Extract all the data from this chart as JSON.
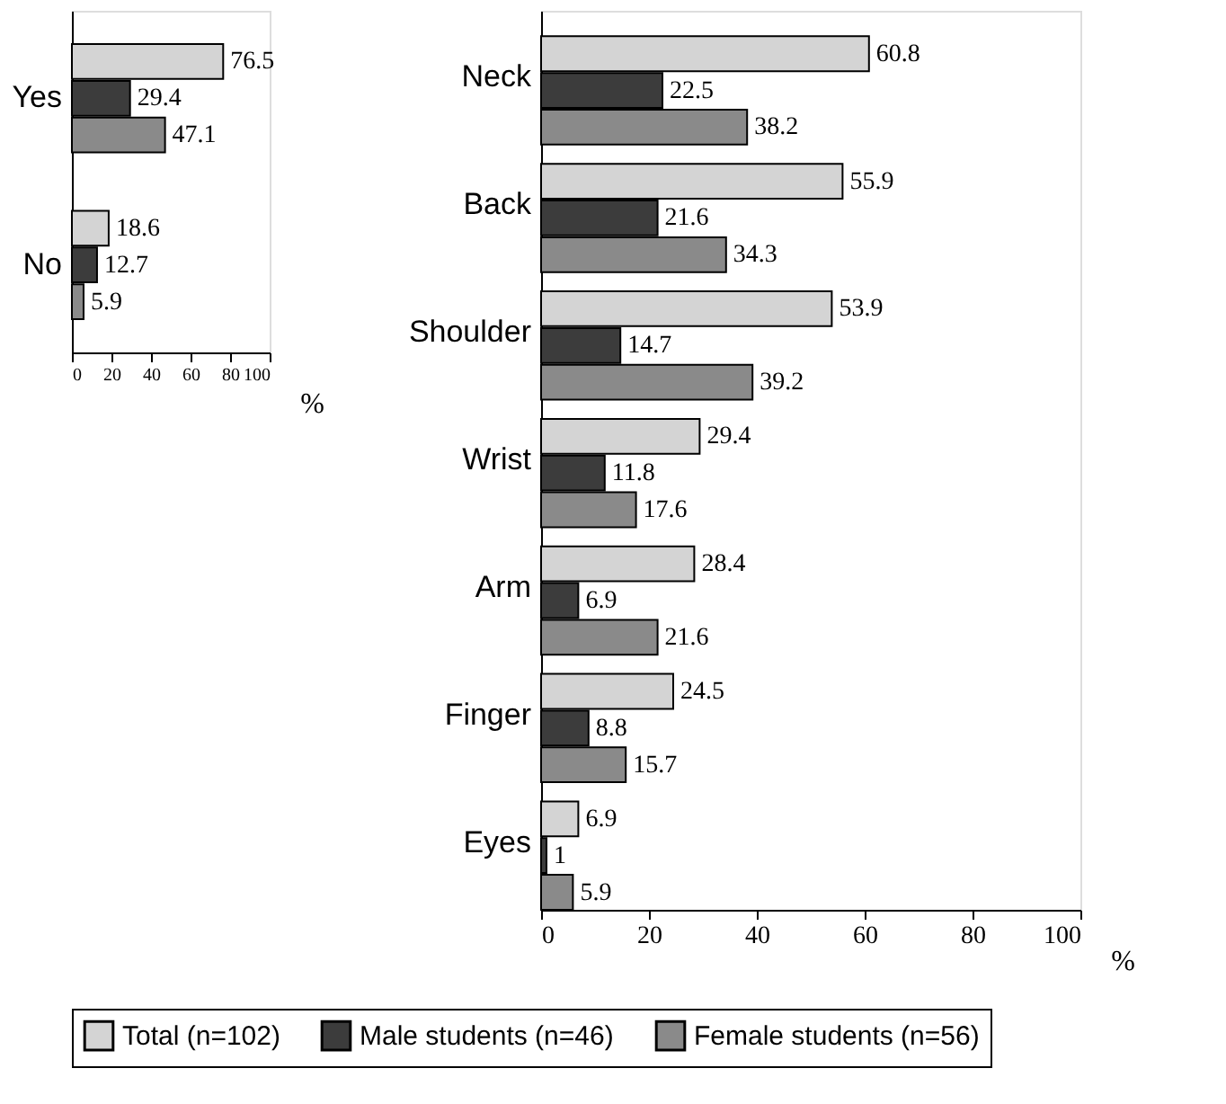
{
  "chart_data": [
    {
      "type": "bar",
      "orientation": "horizontal",
      "categories": [
        "Yes",
        "No"
      ],
      "xlabel": "%",
      "xlim": [
        0,
        100
      ],
      "xticks": [
        0,
        20,
        40,
        60,
        80,
        100
      ],
      "data_labels": true,
      "grid": false,
      "legend": "bottom",
      "series": [
        {
          "name": "Total (n=102)",
          "color": "#d4d4d4",
          "values": [
            76.5,
            18.6
          ]
        },
        {
          "name": "Male students (n=46)",
          "color": "#3c3c3c",
          "values": [
            29.4,
            12.7
          ]
        },
        {
          "name": "Female students (n=56)",
          "color": "#8a8a8a",
          "values": [
            47.1,
            5.9
          ]
        }
      ]
    },
    {
      "type": "bar",
      "orientation": "horizontal",
      "categories": [
        "Neck",
        "Back",
        "Shoulder",
        "Wrist",
        "Arm",
        "Finger",
        "Eyes"
      ],
      "xlabel": "%",
      "xlim": [
        0,
        100
      ],
      "xticks": [
        0,
        20,
        40,
        60,
        80,
        100
      ],
      "data_labels": true,
      "grid": false,
      "legend": "bottom",
      "series": [
        {
          "name": "Total (n=102)",
          "color": "#d4d4d4",
          "values": [
            60.8,
            55.9,
            53.9,
            29.4,
            28.4,
            24.5,
            6.9
          ]
        },
        {
          "name": "Male students (n=46)",
          "color": "#3c3c3c",
          "values": [
            22.5,
            21.6,
            14.7,
            11.8,
            6.9,
            8.8,
            1
          ]
        },
        {
          "name": "Female students (n=56)",
          "color": "#8a8a8a",
          "values": [
            38.2,
            34.3,
            39.2,
            17.6,
            21.6,
            15.7,
            5.9
          ]
        }
      ]
    }
  ]
}
